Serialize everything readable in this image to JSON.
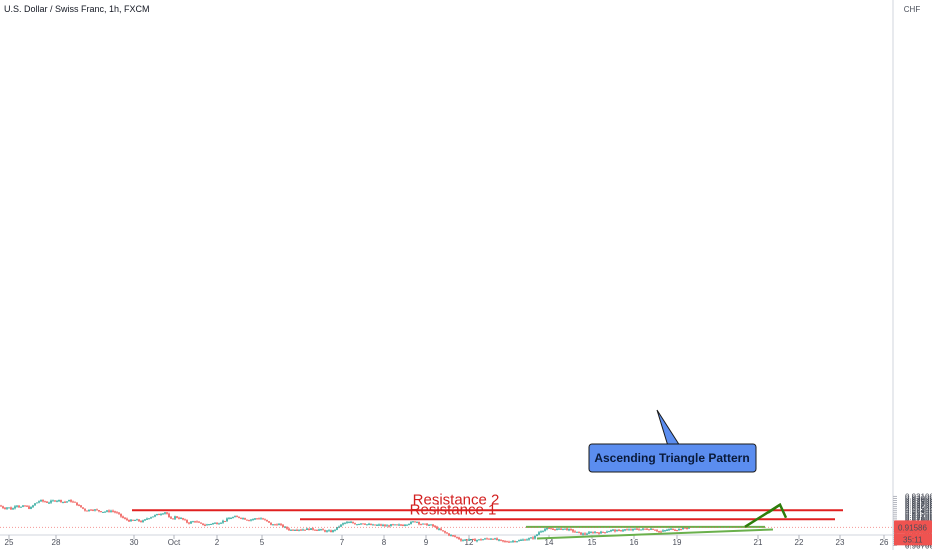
{
  "header": {
    "title": "U.S. Dollar / Swiss Franc, 1h, FXCM",
    "currency": "CHF"
  },
  "chart_data": {
    "type": "candlestick",
    "title": "U.S. Dollar / Swiss Franc, 1h, FXCM",
    "xlabel": "",
    "ylabel": "",
    "ylim": [
      0.9069,
      0.9322
    ],
    "y_ticks": [
      "0.93100",
      "0.93000",
      "0.92900",
      "0.92800",
      "0.92700",
      "0.92600",
      "0.92500",
      "0.92400",
      "0.92300",
      "0.92200",
      "0.92100",
      "0.92000",
      "0.91900",
      "0.91800",
      "0.91700",
      "0.91600",
      "0.91500",
      "0.91400",
      "0.91300",
      "0.91200",
      "0.91100",
      "0.91000",
      "0.90900",
      "0.90800",
      "0.90700"
    ],
    "x_ticks": [
      "25",
      "28",
      "30",
      "Oct",
      "2",
      "5",
      "7",
      "8",
      "9",
      "12",
      "14",
      "15",
      "16",
      "19",
      "21",
      "22",
      "23",
      "26"
    ],
    "last_price": "0.91586",
    "countdown": "35:11",
    "colors": {
      "up": "#26a69a",
      "down": "#ef5350",
      "resistance": "#e02020",
      "triangle": "#6ab04c",
      "arrow": "#2e7d0a",
      "callout_bg": "#5b8def",
      "price_label": "#ef5350"
    },
    "price_path": [
      {
        "t": 0,
        "p": 0.9265
      },
      {
        "t": 4,
        "p": 0.9252
      },
      {
        "t": 8,
        "p": 0.9258
      },
      {
        "t": 12,
        "p": 0.9245
      },
      {
        "t": 16,
        "p": 0.9272
      },
      {
        "t": 20,
        "p": 0.9256
      },
      {
        "t": 25,
        "p": 0.9264
      },
      {
        "t": 30,
        "p": 0.925
      },
      {
        "t": 35,
        "p": 0.9275
      },
      {
        "t": 40,
        "p": 0.929
      },
      {
        "t": 44,
        "p": 0.9285
      },
      {
        "t": 48,
        "p": 0.928
      },
      {
        "t": 53,
        "p": 0.9288
      },
      {
        "t": 58,
        "p": 0.9292
      },
      {
        "t": 64,
        "p": 0.9282
      },
      {
        "t": 70,
        "p": 0.929
      },
      {
        "t": 76,
        "p": 0.9275
      },
      {
        "t": 80,
        "p": 0.926
      },
      {
        "t": 86,
        "p": 0.924
      },
      {
        "t": 92,
        "p": 0.9248
      },
      {
        "t": 98,
        "p": 0.924
      },
      {
        "t": 104,
        "p": 0.9235
      },
      {
        "t": 112,
        "p": 0.924
      },
      {
        "t": 118,
        "p": 0.9225
      },
      {
        "t": 124,
        "p": 0.92
      },
      {
        "t": 130,
        "p": 0.919
      },
      {
        "t": 136,
        "p": 0.9195
      },
      {
        "t": 142,
        "p": 0.9185
      },
      {
        "t": 148,
        "p": 0.9205
      },
      {
        "t": 154,
        "p": 0.9215
      },
      {
        "t": 160,
        "p": 0.9225
      },
      {
        "t": 166,
        "p": 0.9235
      },
      {
        "t": 170,
        "p": 0.9195
      },
      {
        "t": 175,
        "p": 0.921
      },
      {
        "t": 182,
        "p": 0.92
      },
      {
        "t": 188,
        "p": 0.918
      },
      {
        "t": 195,
        "p": 0.919
      },
      {
        "t": 200,
        "p": 0.9175
      },
      {
        "t": 206,
        "p": 0.917
      },
      {
        "t": 212,
        "p": 0.9178
      },
      {
        "t": 218,
        "p": 0.918
      },
      {
        "t": 224,
        "p": 0.919
      },
      {
        "t": 230,
        "p": 0.9205
      },
      {
        "t": 236,
        "p": 0.921
      },
      {
        "t": 242,
        "p": 0.9205
      },
      {
        "t": 248,
        "p": 0.9195
      },
      {
        "t": 254,
        "p": 0.92
      },
      {
        "t": 260,
        "p": 0.9205
      },
      {
        "t": 266,
        "p": 0.919
      },
      {
        "t": 272,
        "p": 0.917
      },
      {
        "t": 278,
        "p": 0.9175
      },
      {
        "t": 284,
        "p": 0.916
      },
      {
        "t": 290,
        "p": 0.9145
      },
      {
        "t": 296,
        "p": 0.915
      },
      {
        "t": 302,
        "p": 0.9148
      },
      {
        "t": 310,
        "p": 0.915
      },
      {
        "t": 318,
        "p": 0.9148
      },
      {
        "t": 326,
        "p": 0.914
      },
      {
        "t": 332,
        "p": 0.9138
      },
      {
        "t": 338,
        "p": 0.916
      },
      {
        "t": 344,
        "p": 0.918
      },
      {
        "t": 350,
        "p": 0.9183
      },
      {
        "t": 356,
        "p": 0.9175
      },
      {
        "t": 362,
        "p": 0.918
      },
      {
        "t": 368,
        "p": 0.9172
      },
      {
        "t": 374,
        "p": 0.9168
      },
      {
        "t": 380,
        "p": 0.917
      },
      {
        "t": 386,
        "p": 0.9165
      },
      {
        "t": 392,
        "p": 0.917
      },
      {
        "t": 398,
        "p": 0.9168
      },
      {
        "t": 404,
        "p": 0.9172
      },
      {
        "t": 410,
        "p": 0.918
      },
      {
        "t": 416,
        "p": 0.919
      },
      {
        "t": 420,
        "p": 0.9175
      },
      {
        "t": 426,
        "p": 0.9172
      },
      {
        "t": 432,
        "p": 0.9168
      },
      {
        "t": 438,
        "p": 0.915
      },
      {
        "t": 444,
        "p": 0.9135
      },
      {
        "t": 450,
        "p": 0.912
      },
      {
        "t": 456,
        "p": 0.911
      },
      {
        "t": 462,
        "p": 0.9095
      },
      {
        "t": 468,
        "p": 0.91
      },
      {
        "t": 474,
        "p": 0.9095
      },
      {
        "t": 480,
        "p": 0.9098
      },
      {
        "t": 486,
        "p": 0.9102
      },
      {
        "t": 492,
        "p": 0.9105
      },
      {
        "t": 498,
        "p": 0.9095
      },
      {
        "t": 504,
        "p": 0.9088
      },
      {
        "t": 510,
        "p": 0.909
      },
      {
        "t": 516,
        "p": 0.9092
      },
      {
        "t": 522,
        "p": 0.9096
      },
      {
        "t": 528,
        "p": 0.9102
      },
      {
        "t": 534,
        "p": 0.9108
      },
      {
        "t": 540,
        "p": 0.914
      },
      {
        "t": 546,
        "p": 0.9152
      },
      {
        "t": 552,
        "p": 0.915
      },
      {
        "t": 558,
        "p": 0.9148
      },
      {
        "t": 564,
        "p": 0.9152
      },
      {
        "t": 570,
        "p": 0.9145
      },
      {
        "t": 576,
        "p": 0.9135
      },
      {
        "t": 582,
        "p": 0.9125
      },
      {
        "t": 588,
        "p": 0.913
      },
      {
        "t": 594,
        "p": 0.9135
      },
      {
        "t": 600,
        "p": 0.9132
      },
      {
        "t": 606,
        "p": 0.9138
      },
      {
        "t": 612,
        "p": 0.9145
      },
      {
        "t": 618,
        "p": 0.914
      },
      {
        "t": 624,
        "p": 0.9148
      },
      {
        "t": 630,
        "p": 0.9145
      },
      {
        "t": 636,
        "p": 0.915
      },
      {
        "t": 642,
        "p": 0.9148
      },
      {
        "t": 648,
        "p": 0.9152
      },
      {
        "t": 654,
        "p": 0.915
      },
      {
        "t": 660,
        "p": 0.9135
      },
      {
        "t": 666,
        "p": 0.9145
      },
      {
        "t": 672,
        "p": 0.915
      },
      {
        "t": 678,
        "p": 0.9148
      },
      {
        "t": 684,
        "p": 0.9155
      },
      {
        "t": 690,
        "p": 0.9158
      }
    ],
    "annotations": {
      "resistance_1": {
        "label": "Resistance 1",
        "price": 0.9198,
        "t_start": 300,
        "t_end": 835
      },
      "resistance_2": {
        "label": "Resistance 2",
        "price": 0.9242,
        "t_start": 132,
        "t_end": 843
      },
      "triangle_top": {
        "price": 0.9161,
        "t_start": 526,
        "t_end": 765
      },
      "triangle_bottom": {
        "t_start": 537,
        "p_start": 0.9104,
        "t_end": 773,
        "p_end": 0.9148
      },
      "breakout_arrow": {
        "t_start": 745,
        "p_start": 0.9161,
        "t_end": 780,
        "p_end": 0.924
      },
      "callout": {
        "label": "Ascending Triangle Pattern"
      }
    }
  }
}
